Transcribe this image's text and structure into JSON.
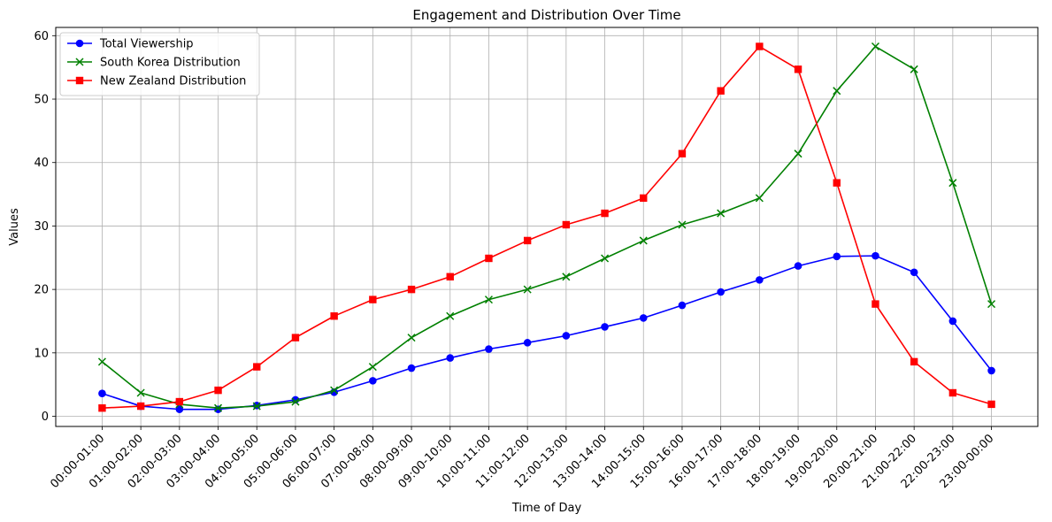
{
  "chart_data": {
    "type": "line",
    "title": "Engagement and Distribution Over Time",
    "xlabel": "Time of Day",
    "ylabel": "Values",
    "ylim": [
      -1.6,
      61.3
    ],
    "yticks": [
      0,
      10,
      20,
      30,
      40,
      50,
      60
    ],
    "grid": true,
    "legend_position": "top-left",
    "categories": [
      "00:00-01:00",
      "01:00-02:00",
      "02:00-03:00",
      "03:00-04:00",
      "04:00-05:00",
      "05:00-06:00",
      "06:00-07:00",
      "07:00-08:00",
      "08:00-09:00",
      "09:00-10:00",
      "10:00-11:00",
      "11:00-12:00",
      "12:00-13:00",
      "13:00-14:00",
      "14:00-15:00",
      "15:00-16:00",
      "16:00-17:00",
      "17:00-18:00",
      "18:00-19:00",
      "19:00-20:00",
      "20:00-21:00",
      "21:00-22:00",
      "22:00-23:00",
      "23:00-00:00"
    ],
    "series": [
      {
        "name": "Total Viewership",
        "color": "#0000ff",
        "marker": "circle",
        "values": [
          3.6,
          1.6,
          1.1,
          1.1,
          1.7,
          2.6,
          3.8,
          5.6,
          7.6,
          9.2,
          10.6,
          11.6,
          12.7,
          14.1,
          15.5,
          17.5,
          19.6,
          21.5,
          23.7,
          25.2,
          25.3,
          22.7,
          15.0,
          7.2
        ]
      },
      {
        "name": "South Korea Distribution",
        "color": "#008000",
        "marker": "x",
        "values": [
          8.6,
          3.7,
          1.9,
          1.3,
          1.6,
          2.3,
          4.1,
          7.8,
          12.4,
          15.8,
          18.4,
          20.0,
          22.0,
          24.9,
          27.7,
          30.2,
          32.0,
          34.4,
          41.4,
          51.3,
          58.3,
          54.7,
          36.8,
          17.7
        ]
      },
      {
        "name": "New Zealand Distribution",
        "color": "#ff0000",
        "marker": "square",
        "values": [
          1.3,
          1.6,
          2.3,
          4.1,
          7.8,
          12.4,
          15.8,
          18.4,
          20.0,
          22.0,
          24.9,
          27.7,
          30.2,
          32.0,
          34.4,
          41.4,
          51.3,
          58.3,
          54.7,
          36.8,
          17.7,
          8.6,
          3.7,
          1.9
        ]
      }
    ]
  }
}
